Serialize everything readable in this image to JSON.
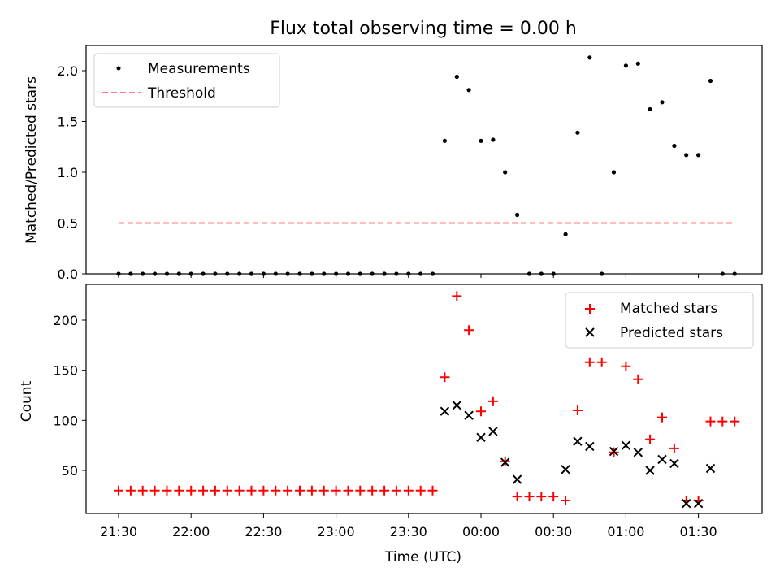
{
  "chart_data": [
    {
      "type": "scatter",
      "title": "Flux total observing time = 0.00 h",
      "xlabel": "",
      "ylabel": "Matched/Predicted stars",
      "ylim": [
        0,
        2.25
      ],
      "yticks": [
        "0.0",
        "0.5",
        "1.0",
        "1.5",
        "2.0"
      ],
      "legend_position": "top-left",
      "series": [
        {
          "name": "Measurements",
          "kind": "points",
          "color": "#000000",
          "x": [
            "21:30",
            "21:35",
            "21:40",
            "21:45",
            "21:50",
            "21:55",
            "22:00",
            "22:05",
            "22:10",
            "22:15",
            "22:20",
            "22:25",
            "22:30",
            "22:35",
            "22:40",
            "22:45",
            "22:50",
            "22:55",
            "23:00",
            "23:05",
            "23:10",
            "23:15",
            "23:20",
            "23:25",
            "23:30",
            "23:35",
            "23:40",
            "23:45",
            "23:50",
            "23:55",
            "00:00",
            "00:05",
            "00:10",
            "00:15",
            "00:20",
            "00:25",
            "00:30",
            "00:35",
            "00:40",
            "00:45",
            "00:50",
            "00:55",
            "01:00",
            "01:05",
            "01:10",
            "01:15",
            "01:20",
            "01:25",
            "01:30",
            "01:35",
            "01:40",
            "01:45"
          ],
          "values": [
            0,
            0,
            0,
            0,
            0,
            0,
            0,
            0,
            0,
            0,
            0,
            0,
            0,
            0,
            0,
            0,
            0,
            0,
            0,
            0,
            0,
            0,
            0,
            0,
            0,
            0,
            0,
            1.31,
            1.94,
            1.81,
            1.31,
            1.32,
            1.0,
            0.58,
            0,
            0,
            0,
            0.39,
            1.39,
            2.13,
            0,
            1.0,
            2.05,
            2.07,
            1.62,
            1.69,
            1.26,
            1.17,
            1.17,
            1.9,
            0,
            0
          ]
        },
        {
          "name": "Threshold",
          "kind": "dashed-line",
          "color": "#ff7f7f",
          "x": [
            "21:30",
            "01:45"
          ],
          "values": [
            0.5,
            0.5
          ]
        }
      ]
    },
    {
      "type": "scatter",
      "title": "",
      "xlabel": "Time (UTC)",
      "ylabel": "Count",
      "ylim": [
        5,
        235
      ],
      "yticks": [
        "50",
        "100",
        "150",
        "200"
      ],
      "xticks": [
        "21:30",
        "22:00",
        "22:30",
        "23:00",
        "23:30",
        "00:00",
        "00:30",
        "01:00",
        "01:30"
      ],
      "legend_position": "top-right",
      "series": [
        {
          "name": "Matched stars",
          "marker": "plus",
          "color": "#ff0000",
          "x": [
            "21:30",
            "21:35",
            "21:40",
            "21:45",
            "21:50",
            "21:55",
            "22:00",
            "22:05",
            "22:10",
            "22:15",
            "22:20",
            "22:25",
            "22:30",
            "22:35",
            "22:40",
            "22:45",
            "22:50",
            "22:55",
            "23:00",
            "23:05",
            "23:10",
            "23:15",
            "23:20",
            "23:25",
            "23:30",
            "23:35",
            "23:40",
            "23:45",
            "23:50",
            "23:55",
            "00:00",
            "00:05",
            "00:10",
            "00:15",
            "00:20",
            "00:25",
            "00:30",
            "00:35",
            "00:40",
            "00:45",
            "00:50",
            "00:55",
            "01:00",
            "01:05",
            "01:10",
            "01:15",
            "01:20",
            "01:25",
            "01:30",
            "01:35",
            "01:40",
            "01:45"
          ],
          "values": [
            30,
            30,
            30,
            30,
            30,
            30,
            30,
            30,
            30,
            30,
            30,
            30,
            30,
            30,
            30,
            30,
            30,
            30,
            30,
            30,
            30,
            30,
            30,
            30,
            30,
            30,
            30,
            143,
            224,
            190,
            109,
            119,
            59,
            24,
            24,
            24,
            24,
            20,
            110,
            158,
            158,
            68,
            154,
            141,
            81,
            103,
            72,
            20,
            20,
            99,
            99,
            99
          ]
        },
        {
          "name": "Predicted stars",
          "marker": "x",
          "color": "#000000",
          "x": [
            "23:45",
            "23:50",
            "23:55",
            "00:00",
            "00:05",
            "00:10",
            "00:15",
            "00:35",
            "00:40",
            "00:45",
            "00:55",
            "01:00",
            "01:05",
            "01:10",
            "01:15",
            "01:20",
            "01:25",
            "01:30",
            "01:35"
          ],
          "values": [
            109,
            115,
            105,
            83,
            89,
            58,
            41,
            51,
            79,
            74,
            69,
            75,
            68,
            50,
            61,
            57,
            17,
            17,
            52
          ]
        }
      ]
    }
  ]
}
